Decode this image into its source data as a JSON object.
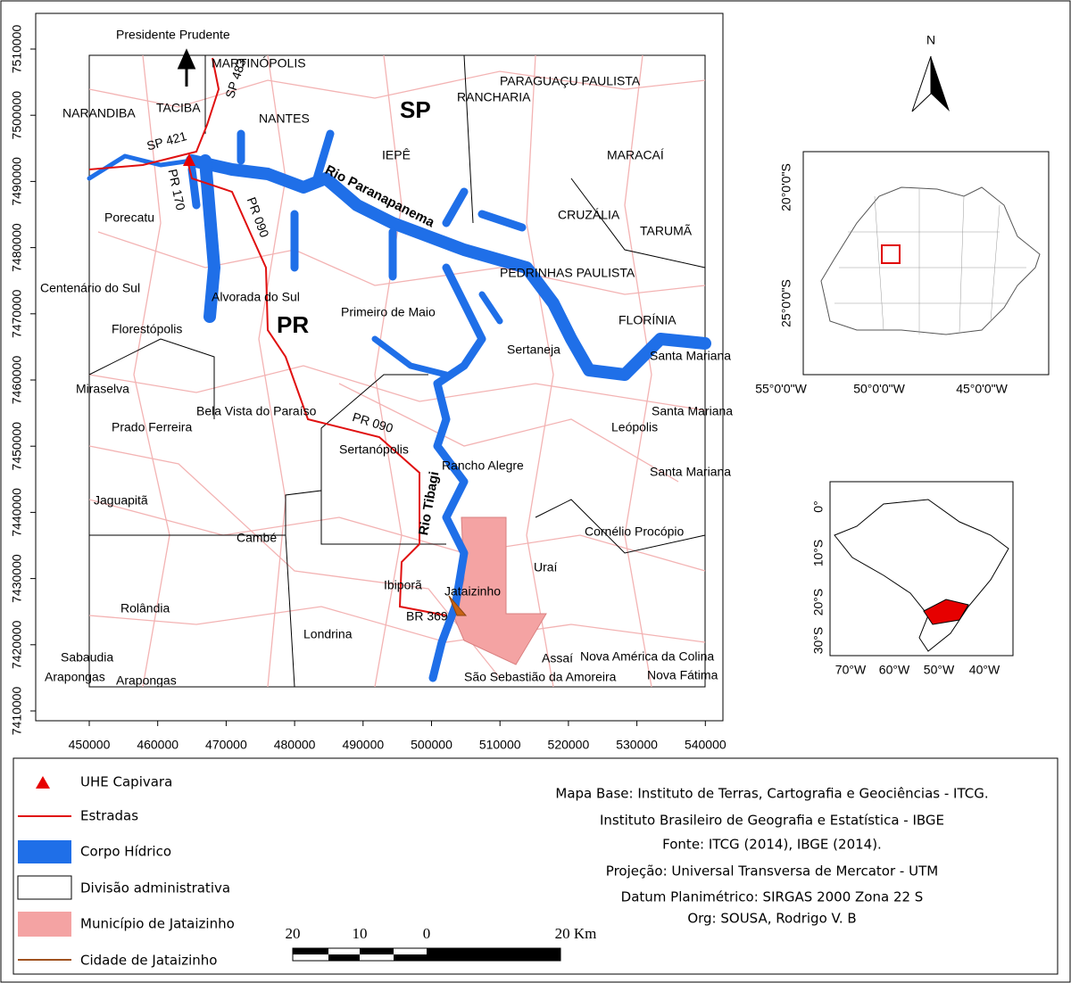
{
  "main_map": {
    "labels": [
      "Presidente Prudente",
      "MARTINÓPOLIS",
      "SP 483",
      "NARANDIBA",
      "TACIBA",
      "NANTES",
      "SP",
      "RANCHARIA",
      "PARAGUAÇU PAULISTA",
      "SP 421",
      "IEPÊ",
      "MARACAÍ",
      "PR 170",
      "Rio Paranapanema",
      "PR 090",
      "Porecatu",
      "CRUZÁLIA",
      "TARUMÃ",
      "PEDRINHAS PAULISTA",
      "Centenário do Sul",
      "Alvorada do Sul",
      "PR",
      "Primeiro de Maio",
      "FLORÍNIA",
      "Florestópolis",
      "Sertaneja",
      "Santa Mariana",
      "Miraselva",
      "Bela Vista do Paraíso",
      "PR 090",
      "Santa Mariana",
      "Prado Ferreira",
      "Leópolis",
      "Sertanópolis",
      "Rancho Alegre",
      "Santa Mariana",
      "Rio Tibagi",
      "Jaguapitã",
      "Cambé",
      "Cornélio Procópio",
      "Uraí",
      "Ibiporã",
      "Jataizinho",
      "Rolândia",
      "BR 369",
      "Londrina",
      "Sabaudia",
      "Assaí",
      "Nova América da Colina",
      "Arapongas",
      "Arapongas",
      "São Sebastião da Amoreira",
      "Nova Fátima"
    ],
    "x_ticks": [
      450000,
      460000,
      470000,
      480000,
      490000,
      500000,
      510000,
      520000,
      530000,
      540000
    ],
    "y_ticks": [
      7510000,
      7500000,
      7490000,
      7480000,
      7470000,
      7460000,
      7450000,
      7440000,
      7430000,
      7420000,
      7410000
    ]
  },
  "north_arrow": "N",
  "inset_parana": {
    "lat_labels": [
      "20°0'0\"S",
      "25°0'0\"S"
    ],
    "lon_labels": [
      "55°0'0\"W",
      "50°0'0\"W",
      "45°0'0\"W"
    ]
  },
  "inset_brazil": {
    "lat_labels": [
      "0°",
      "10°S",
      "20°S",
      "30°S"
    ],
    "lon_labels": [
      "70°W",
      "60°W",
      "50°W",
      "40°W"
    ]
  },
  "legend": {
    "items": [
      "UHE Capivara",
      "Estradas",
      "Corpo Hídrico",
      "Divisão administrativa",
      "Município de Jataizinho",
      "Cidade de Jataizinho"
    ]
  },
  "credits": [
    "Mapa Base: Instituto de Terras, Cartografia e Geociências - ITCG.",
    "Instituto Brasileiro de Geografia e Estatística - IBGE",
    "Fonte: ITCG (2014), IBGE (2014).",
    "Projeção: Universal Transversa de Mercator - UTM",
    "Datum Planimétrico: SIRGAS 2000 Zona 22 S",
    "Org: SOUSA, Rodrigo V. B"
  ],
  "scale_bar": {
    "labels": [
      "20",
      "10",
      "0",
      "20 Km"
    ]
  }
}
